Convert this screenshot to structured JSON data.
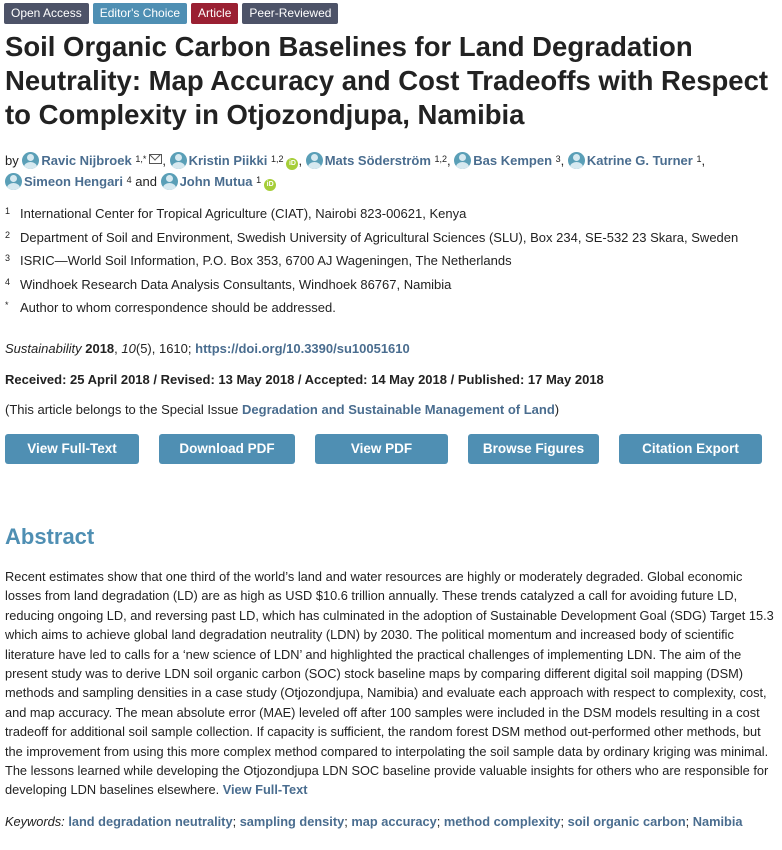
{
  "badges": [
    {
      "label": "Open Access",
      "color": "#4d5368"
    },
    {
      "label": "Editor's Choice",
      "color": "#4f8fb3"
    },
    {
      "label": "Article",
      "color": "#9a2032"
    },
    {
      "label": "Peer-Reviewed",
      "color": "#4d5368"
    }
  ],
  "title": "Soil Organic Carbon Baselines for Land Degradation Neutrality: Map Accuracy and Cost Tradeoffs with Respect to Complexity in Otjozondjupa, Namibia",
  "authors": {
    "by": "by",
    "and": "and",
    "list": [
      {
        "name": "Ravic Nijbroek",
        "sup": "1,*"
      },
      {
        "name": "Kristin Piikki",
        "sup": "1,2"
      },
      {
        "name": "Mats Söderström",
        "sup": "1,2"
      },
      {
        "name": "Bas Kempen",
        "sup": "3"
      },
      {
        "name": "Katrine G. Turner",
        "sup": "1"
      },
      {
        "name": "Simeon Hengari",
        "sup": "4"
      },
      {
        "name": "John Mutua",
        "sup": "1"
      }
    ]
  },
  "affiliations": [
    {
      "num": "1",
      "text": "International Center for Tropical Agriculture (CIAT), Nairobi 823-00621, Kenya"
    },
    {
      "num": "2",
      "text": "Department of Soil and Environment, Swedish University of Agricultural Sciences (SLU), Box 234, SE-532 23 Skara, Sweden"
    },
    {
      "num": "3",
      "text": "ISRIC—World Soil Information, P.O. Box 353, 6700 AJ Wageningen, The Netherlands"
    },
    {
      "num": "4",
      "text": "Windhoek Research Data Analysis Consultants, Windhoek 86767, Namibia"
    },
    {
      "num": "*",
      "text": "Author to whom correspondence should be addressed."
    }
  ],
  "citation": {
    "journal": "Sustainability",
    "year": "2018",
    "volume": "10",
    "issue": "(5)",
    "pages": ", 1610;",
    "doi": "https://doi.org/10.3390/su10051610"
  },
  "dates": "Received: 25 April 2018 / Revised: 13 May 2018 / Accepted: 14 May 2018 / Published: 17 May 2018",
  "special_issue": {
    "prefix": "(This article belongs to the Special Issue",
    "link": "Degradation and Sustainable Management of Land",
    "suffix": ")"
  },
  "buttons": {
    "full_text": "View Full-Text",
    "download_pdf": "Download PDF",
    "view_pdf": "View PDF",
    "browse_figures": "Browse Figures",
    "citation_export": "Citation Export"
  },
  "abstract": {
    "heading": "Abstract",
    "text": "Recent estimates show that one third of the world’s land and water resources are highly or moderately degraded. Global economic losses from land degradation (LD) are as high as USD $10.6 trillion annually. These trends catalyzed a call for avoiding future LD, reducing ongoing LD, and reversing past LD, which has culminated in the adoption of Sustainable Development Goal (SDG) Target 15.3 which aims to achieve global land degradation neutrality (LDN) by 2030. The political momentum and increased body of scientific literature have led to calls for a ‘new science of LDN’ and highlighted the practical challenges of implementing LDN. The aim of the present study was to derive LDN soil organic carbon (SOC) stock baseline maps by comparing different digital soil mapping (DSM) methods and sampling densities in a case study (Otjozondjupa, Namibia) and evaluate each approach with respect to complexity, cost, and map accuracy. The mean absolute error (MAE) leveled off after 100 samples were included in the DSM models resulting in a cost tradeoff for additional soil sample collection. If capacity is sufficient, the random forest DSM method out-performed other methods, but the improvement from using this more complex method compared to interpolating the soil sample data by ordinary kriging was minimal. The lessons learned while developing the Otjozondjupa LDN SOC baseline provide valuable insights for others who are responsible for developing LDN baselines elsewhere.",
    "link": "View Full-Text"
  },
  "keywords": {
    "label": "Keywords:",
    "items": [
      "land degradation neutrality",
      "sampling density",
      "map accuracy",
      "method complexity",
      "soil organic carbon",
      "Namibia"
    ]
  }
}
